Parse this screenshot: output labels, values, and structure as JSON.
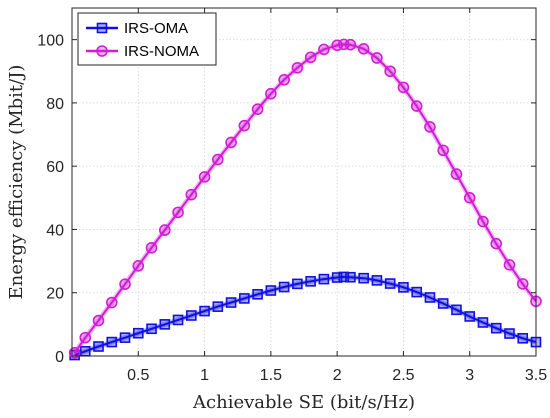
{
  "chart_data": {
    "type": "line",
    "title": "",
    "xlabel": "Achievable SE (bit/s/Hz)",
    "ylabel": "Energy efficiency (Mbit/J)",
    "xlim": [
      0,
      3.5
    ],
    "ylim": [
      0,
      110
    ],
    "xticks": [
      0.5,
      1,
      1.5,
      2,
      2.5,
      3,
      3.5
    ],
    "xtick_labels": [
      "0.5",
      "1",
      "1.5",
      "2",
      "2.5",
      "3",
      "3.5"
    ],
    "yticks": [
      0,
      20,
      40,
      60,
      80,
      100
    ],
    "ytick_labels": [
      "0",
      "20",
      "40",
      "60",
      "80",
      "100"
    ],
    "grid": true,
    "legend_position": "top-left",
    "x": [
      0.02,
      0.1,
      0.2,
      0.3,
      0.4,
      0.5,
      0.6,
      0.7,
      0.8,
      0.9,
      1.0,
      1.1,
      1.2,
      1.3,
      1.4,
      1.5,
      1.6,
      1.7,
      1.8,
      1.9,
      2.0,
      2.05,
      2.1,
      2.2,
      2.3,
      2.4,
      2.5,
      2.6,
      2.7,
      2.8,
      2.9,
      3.0,
      3.1,
      3.2,
      3.3,
      3.4,
      3.5
    ],
    "series": [
      {
        "name": "IRS-OMA",
        "color": "#1010e0",
        "marker": "square",
        "values": [
          0.3,
          1.5,
          3.0,
          4.4,
          5.8,
          7.2,
          8.6,
          10.0,
          11.4,
          12.8,
          14.2,
          15.6,
          16.9,
          18.2,
          19.5,
          20.7,
          21.8,
          22.8,
          23.6,
          24.3,
          24.8,
          25.0,
          24.9,
          24.6,
          23.9,
          22.9,
          21.7,
          20.2,
          18.5,
          16.6,
          14.6,
          12.5,
          10.6,
          8.8,
          7.1,
          5.6,
          4.4
        ]
      },
      {
        "name": "IRS-NOMA",
        "color": "#d21cd6",
        "marker": "circle",
        "values": [
          1.0,
          5.8,
          11.2,
          16.9,
          22.7,
          28.5,
          34.2,
          39.8,
          45.4,
          51.0,
          56.6,
          62.1,
          67.5,
          72.8,
          78.0,
          82.9,
          87.3,
          91.1,
          94.4,
          96.9,
          98.2,
          98.5,
          98.4,
          97.1,
          94.2,
          90.0,
          84.9,
          79.0,
          72.4,
          65.0,
          57.5,
          50.0,
          42.5,
          35.5,
          28.8,
          22.8,
          17.3
        ]
      }
    ]
  }
}
